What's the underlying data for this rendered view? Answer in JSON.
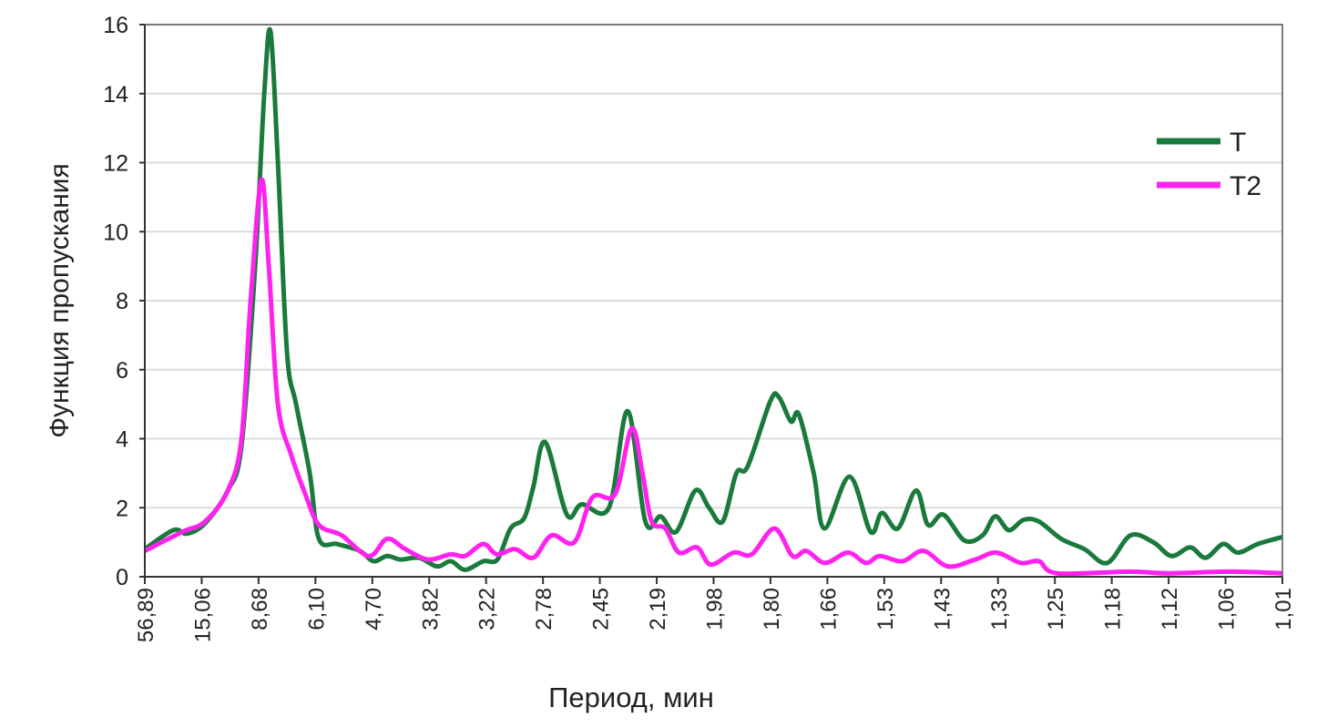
{
  "chart_data": {
    "type": "line",
    "title": "",
    "xlabel": "Период, мин",
    "ylabel": "Функция пропускания",
    "ylim": [
      0,
      16
    ],
    "yticks": [
      0,
      2,
      4,
      6,
      8,
      10,
      12,
      14,
      16
    ],
    "xlim": [
      0,
      20
    ],
    "x_tick_labels": [
      "56,89",
      "15,06",
      "8,68",
      "6,10",
      "4,70",
      "3,82",
      "3,22",
      "2,78",
      "2,45",
      "2,19",
      "1,98",
      "1,80",
      "1,66",
      "1,53",
      "1,43",
      "1,33",
      "1,25",
      "1,18",
      "1,12",
      "1,06",
      "1,01"
    ],
    "x_note": "x values are positions along the category axis (0 = first tick label, 20 = last)",
    "grid": true,
    "legend_position": "top-right",
    "series": [
      {
        "name": "T",
        "color": "#1a7a3c",
        "x": [
          0,
          0.5,
          0.74,
          1.06,
          1.46,
          1.7,
          1.94,
          2.1,
          2.21,
          2.34,
          2.5,
          2.66,
          2.9,
          3.06,
          3.38,
          3.78,
          4.02,
          4.26,
          4.5,
          4.82,
          5.14,
          5.38,
          5.63,
          5.95,
          6.2,
          6.43,
          6.67,
          6.83,
          7.04,
          7.42,
          7.68,
          8.16,
          8.49,
          8.8,
          9.07,
          9.34,
          9.68,
          9.92,
          10.16,
          10.4,
          10.6,
          11.0,
          11.15,
          11.36,
          11.5,
          11.76,
          11.95,
          12.39,
          12.76,
          12.96,
          13.24,
          13.56,
          13.77,
          14.04,
          14.41,
          14.73,
          14.95,
          15.19,
          15.45,
          15.72,
          16.11,
          16.52,
          16.92,
          17.33,
          17.73,
          18.05,
          18.38,
          18.65,
          18.96,
          19.22,
          19.57,
          20
        ],
        "y": [
          0.8,
          1.35,
          1.25,
          1.55,
          2.5,
          3.8,
          9,
          14,
          15.8,
          12,
          6.5,
          5,
          3,
          1.1,
          0.95,
          0.75,
          0.45,
          0.6,
          0.5,
          0.55,
          0.3,
          0.45,
          0.2,
          0.45,
          0.5,
          1.4,
          1.7,
          2.6,
          3.9,
          1.8,
          2.1,
          2.0,
          4.8,
          1.6,
          1.75,
          1.3,
          2.5,
          2.0,
          1.6,
          3.0,
          3.2,
          5.1,
          5.2,
          4.5,
          4.7,
          3.0,
          1.4,
          2.9,
          1.3,
          1.85,
          1.4,
          2.5,
          1.5,
          1.8,
          1.05,
          1.2,
          1.75,
          1.35,
          1.65,
          1.6,
          1.1,
          0.8,
          0.4,
          1.2,
          1.0,
          0.6,
          0.85,
          0.55,
          0.95,
          0.7,
          0.95,
          1.15
        ]
      },
      {
        "name": "T2",
        "color": "#ff22ee",
        "x": [
          0,
          0.66,
          1.06,
          1.46,
          1.7,
          1.86,
          2.05,
          2.18,
          2.34,
          2.58,
          2.82,
          3.06,
          3.46,
          3.94,
          4.26,
          4.58,
          4.98,
          5.38,
          5.63,
          5.95,
          6.19,
          6.51,
          6.83,
          7.15,
          7.55,
          7.87,
          8.27,
          8.56,
          8.75,
          8.91,
          9.15,
          9.39,
          9.71,
          9.95,
          10.35,
          10.67,
          11.07,
          11.39,
          11.63,
          11.96,
          12.36,
          12.68,
          12.92,
          13.32,
          13.69,
          14.12,
          14.6,
          14.97,
          15.4,
          15.72,
          16.04,
          17.32,
          17.96,
          19.09,
          20
        ],
        "y": [
          0.75,
          1.3,
          1.6,
          2.5,
          4,
          8,
          11.5,
          9,
          5,
          3.5,
          2.4,
          1.5,
          1.2,
          0.6,
          1.1,
          0.8,
          0.5,
          0.65,
          0.6,
          0.95,
          0.65,
          0.8,
          0.55,
          1.2,
          1.0,
          2.3,
          2.4,
          4.3,
          3.0,
          1.6,
          1.4,
          0.7,
          0.85,
          0.35,
          0.7,
          0.65,
          1.4,
          0.6,
          0.75,
          0.4,
          0.7,
          0.4,
          0.6,
          0.45,
          0.75,
          0.3,
          0.5,
          0.7,
          0.4,
          0.45,
          0.1,
          0.15,
          0.1,
          0.15,
          0.1
        ]
      }
    ]
  }
}
